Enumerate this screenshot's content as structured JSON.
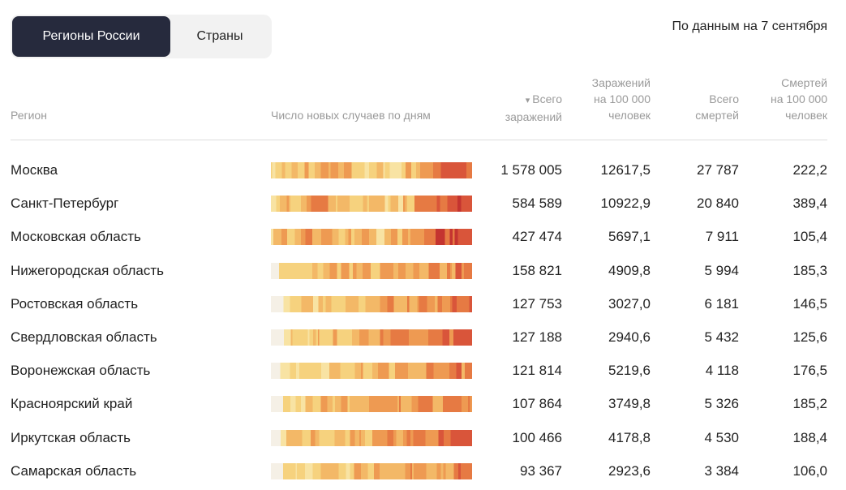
{
  "tabs": [
    "Регионы России",
    "Страны"
  ],
  "date_note": "По данным на 7 сентября",
  "table": {
    "columns": [
      [
        "Регион"
      ],
      [
        "Число новых случаев по дням"
      ],
      [
        "Всего",
        "заражений"
      ],
      [
        "Заражений",
        "на 100 000",
        "человек"
      ],
      [
        "Всего",
        "смертей"
      ],
      [
        "Смертей",
        "на 100 000",
        "человек"
      ]
    ],
    "rows": [
      [
        "Москва",
        "1 578 005",
        "12617,5",
        "27 787",
        "222,2"
      ],
      [
        "Санкт-Петербург",
        "584 589",
        "10922,9",
        "20 840",
        "389,4"
      ],
      [
        "Московская область",
        "427 474",
        "5697,1",
        "7 911",
        "105,4"
      ],
      [
        "Нижегородская область",
        "158 821",
        "4909,8",
        "5 994",
        "185,3"
      ],
      [
        "Ростовская область",
        "127 753",
        "3027,0",
        "6 181",
        "146,5"
      ],
      [
        "Свердловская область",
        "127 188",
        "2940,6",
        "5 432",
        "125,6"
      ],
      [
        "Воронежская область",
        "121 814",
        "5219,6",
        "4 118",
        "176,5"
      ],
      [
        "Красноярский край",
        "107 864",
        "3749,8",
        "5 326",
        "185,2"
      ],
      [
        "Иркутская область",
        "100 466",
        "4178,8",
        "4 530",
        "188,4"
      ],
      [
        "Самарская область",
        "93 367",
        "2923,6",
        "3 384",
        "106,0"
      ]
    ]
  }
}
